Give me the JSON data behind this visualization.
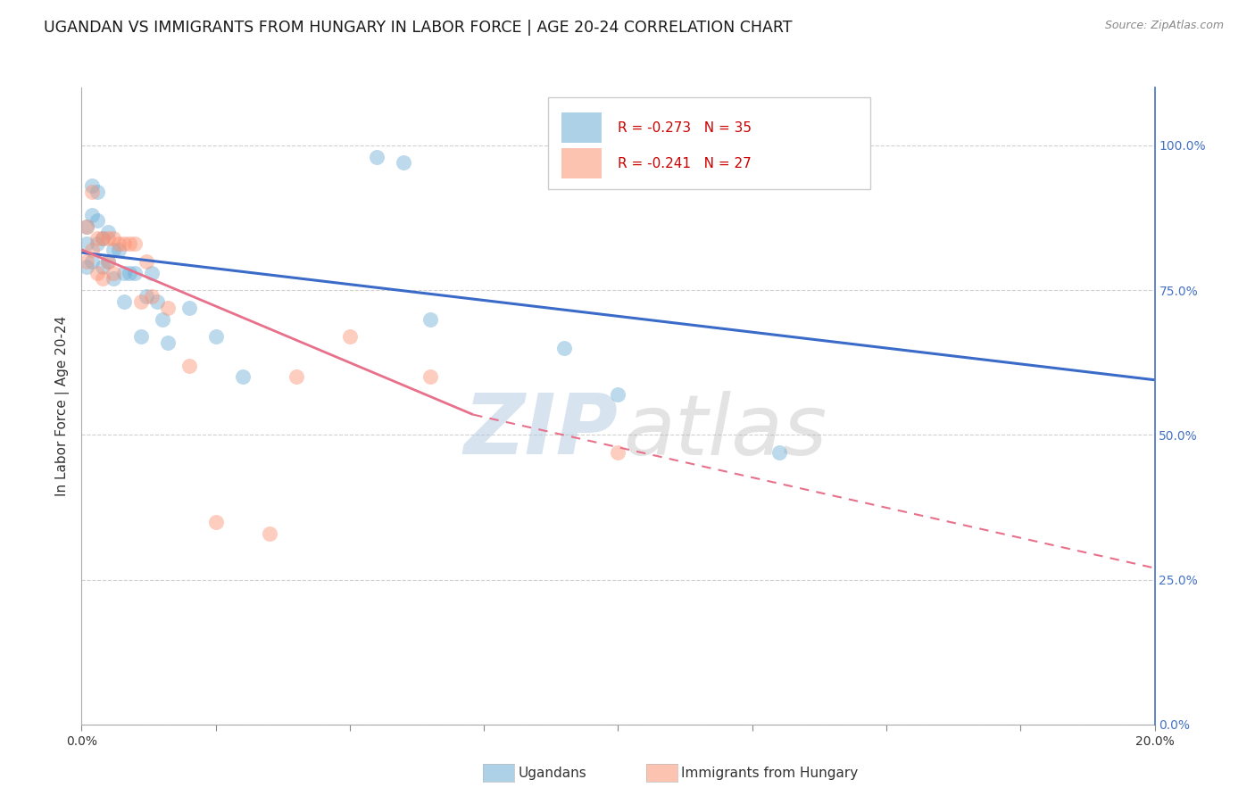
{
  "title": "UGANDAN VS IMMIGRANTS FROM HUNGARY IN LABOR FORCE | AGE 20-24 CORRELATION CHART",
  "source_text": "Source: ZipAtlas.com",
  "ylabel": "In Labor Force | Age 20-24",
  "x_tick_vals": [
    0.0,
    0.025,
    0.05,
    0.075,
    0.1,
    0.125,
    0.15,
    0.175,
    0.2
  ],
  "x_tick_labels": [
    "0.0%",
    "",
    "",
    "",
    "",
    "",
    "",
    "",
    "20.0%"
  ],
  "x_tick_major_vals": [
    0.0,
    0.2
  ],
  "x_tick_major_labels": [
    "0.0%",
    "20.0%"
  ],
  "y_tick_vals": [
    0.0,
    0.25,
    0.5,
    0.75,
    1.0
  ],
  "y_tick_labels": [
    "0.0%",
    "25.0%",
    "50.0%",
    "75.0%",
    "100.0%"
  ],
  "xmin": 0.0,
  "xmax": 0.2,
  "ymin": 0.0,
  "ymax": 1.1,
  "ugandan_color": "#6baed6",
  "hungary_color": "#fc9272",
  "trend_blue_color": "#3a6bc8",
  "trend_pink_color": "#e8708a",
  "right_axis_color": "#4472c4",
  "legend_R_ugandan": "R = -0.273",
  "legend_N_ugandan": "N = 35",
  "legend_R_hungary": "R = -0.241",
  "legend_N_hungary": "N = 27",
  "ugandan_x": [
    0.001,
    0.001,
    0.001,
    0.002,
    0.002,
    0.002,
    0.003,
    0.003,
    0.003,
    0.004,
    0.004,
    0.005,
    0.005,
    0.006,
    0.006,
    0.007,
    0.008,
    0.008,
    0.009,
    0.01,
    0.011,
    0.012,
    0.013,
    0.014,
    0.015,
    0.016,
    0.02,
    0.025,
    0.03,
    0.055,
    0.06,
    0.065,
    0.09,
    0.1,
    0.13
  ],
  "ugandan_y": [
    0.86,
    0.83,
    0.79,
    0.93,
    0.88,
    0.8,
    0.92,
    0.87,
    0.83,
    0.84,
    0.79,
    0.85,
    0.8,
    0.82,
    0.77,
    0.82,
    0.78,
    0.73,
    0.78,
    0.78,
    0.67,
    0.74,
    0.78,
    0.73,
    0.7,
    0.66,
    0.72,
    0.67,
    0.6,
    0.98,
    0.97,
    0.7,
    0.65,
    0.57,
    0.47
  ],
  "hungary_x": [
    0.001,
    0.001,
    0.002,
    0.002,
    0.003,
    0.003,
    0.004,
    0.004,
    0.005,
    0.005,
    0.006,
    0.006,
    0.007,
    0.008,
    0.009,
    0.01,
    0.011,
    0.012,
    0.013,
    0.016,
    0.02,
    0.025,
    0.035,
    0.04,
    0.05,
    0.065,
    0.1
  ],
  "hungary_y": [
    0.86,
    0.8,
    0.92,
    0.82,
    0.84,
    0.78,
    0.84,
    0.77,
    0.84,
    0.8,
    0.84,
    0.78,
    0.83,
    0.83,
    0.83,
    0.83,
    0.73,
    0.8,
    0.74,
    0.72,
    0.62,
    0.35,
    0.33,
    0.6,
    0.67,
    0.6,
    0.47
  ],
  "trend_blue_y0": 0.815,
  "trend_blue_y1": 0.595,
  "trend_pink_y0": 0.82,
  "trend_pink_y1_solid": 0.535,
  "trend_pink_x1_solid": 0.073,
  "trend_pink_y2": 0.27,
  "background_color": "#ffffff",
  "grid_color": "#c8c8c8"
}
